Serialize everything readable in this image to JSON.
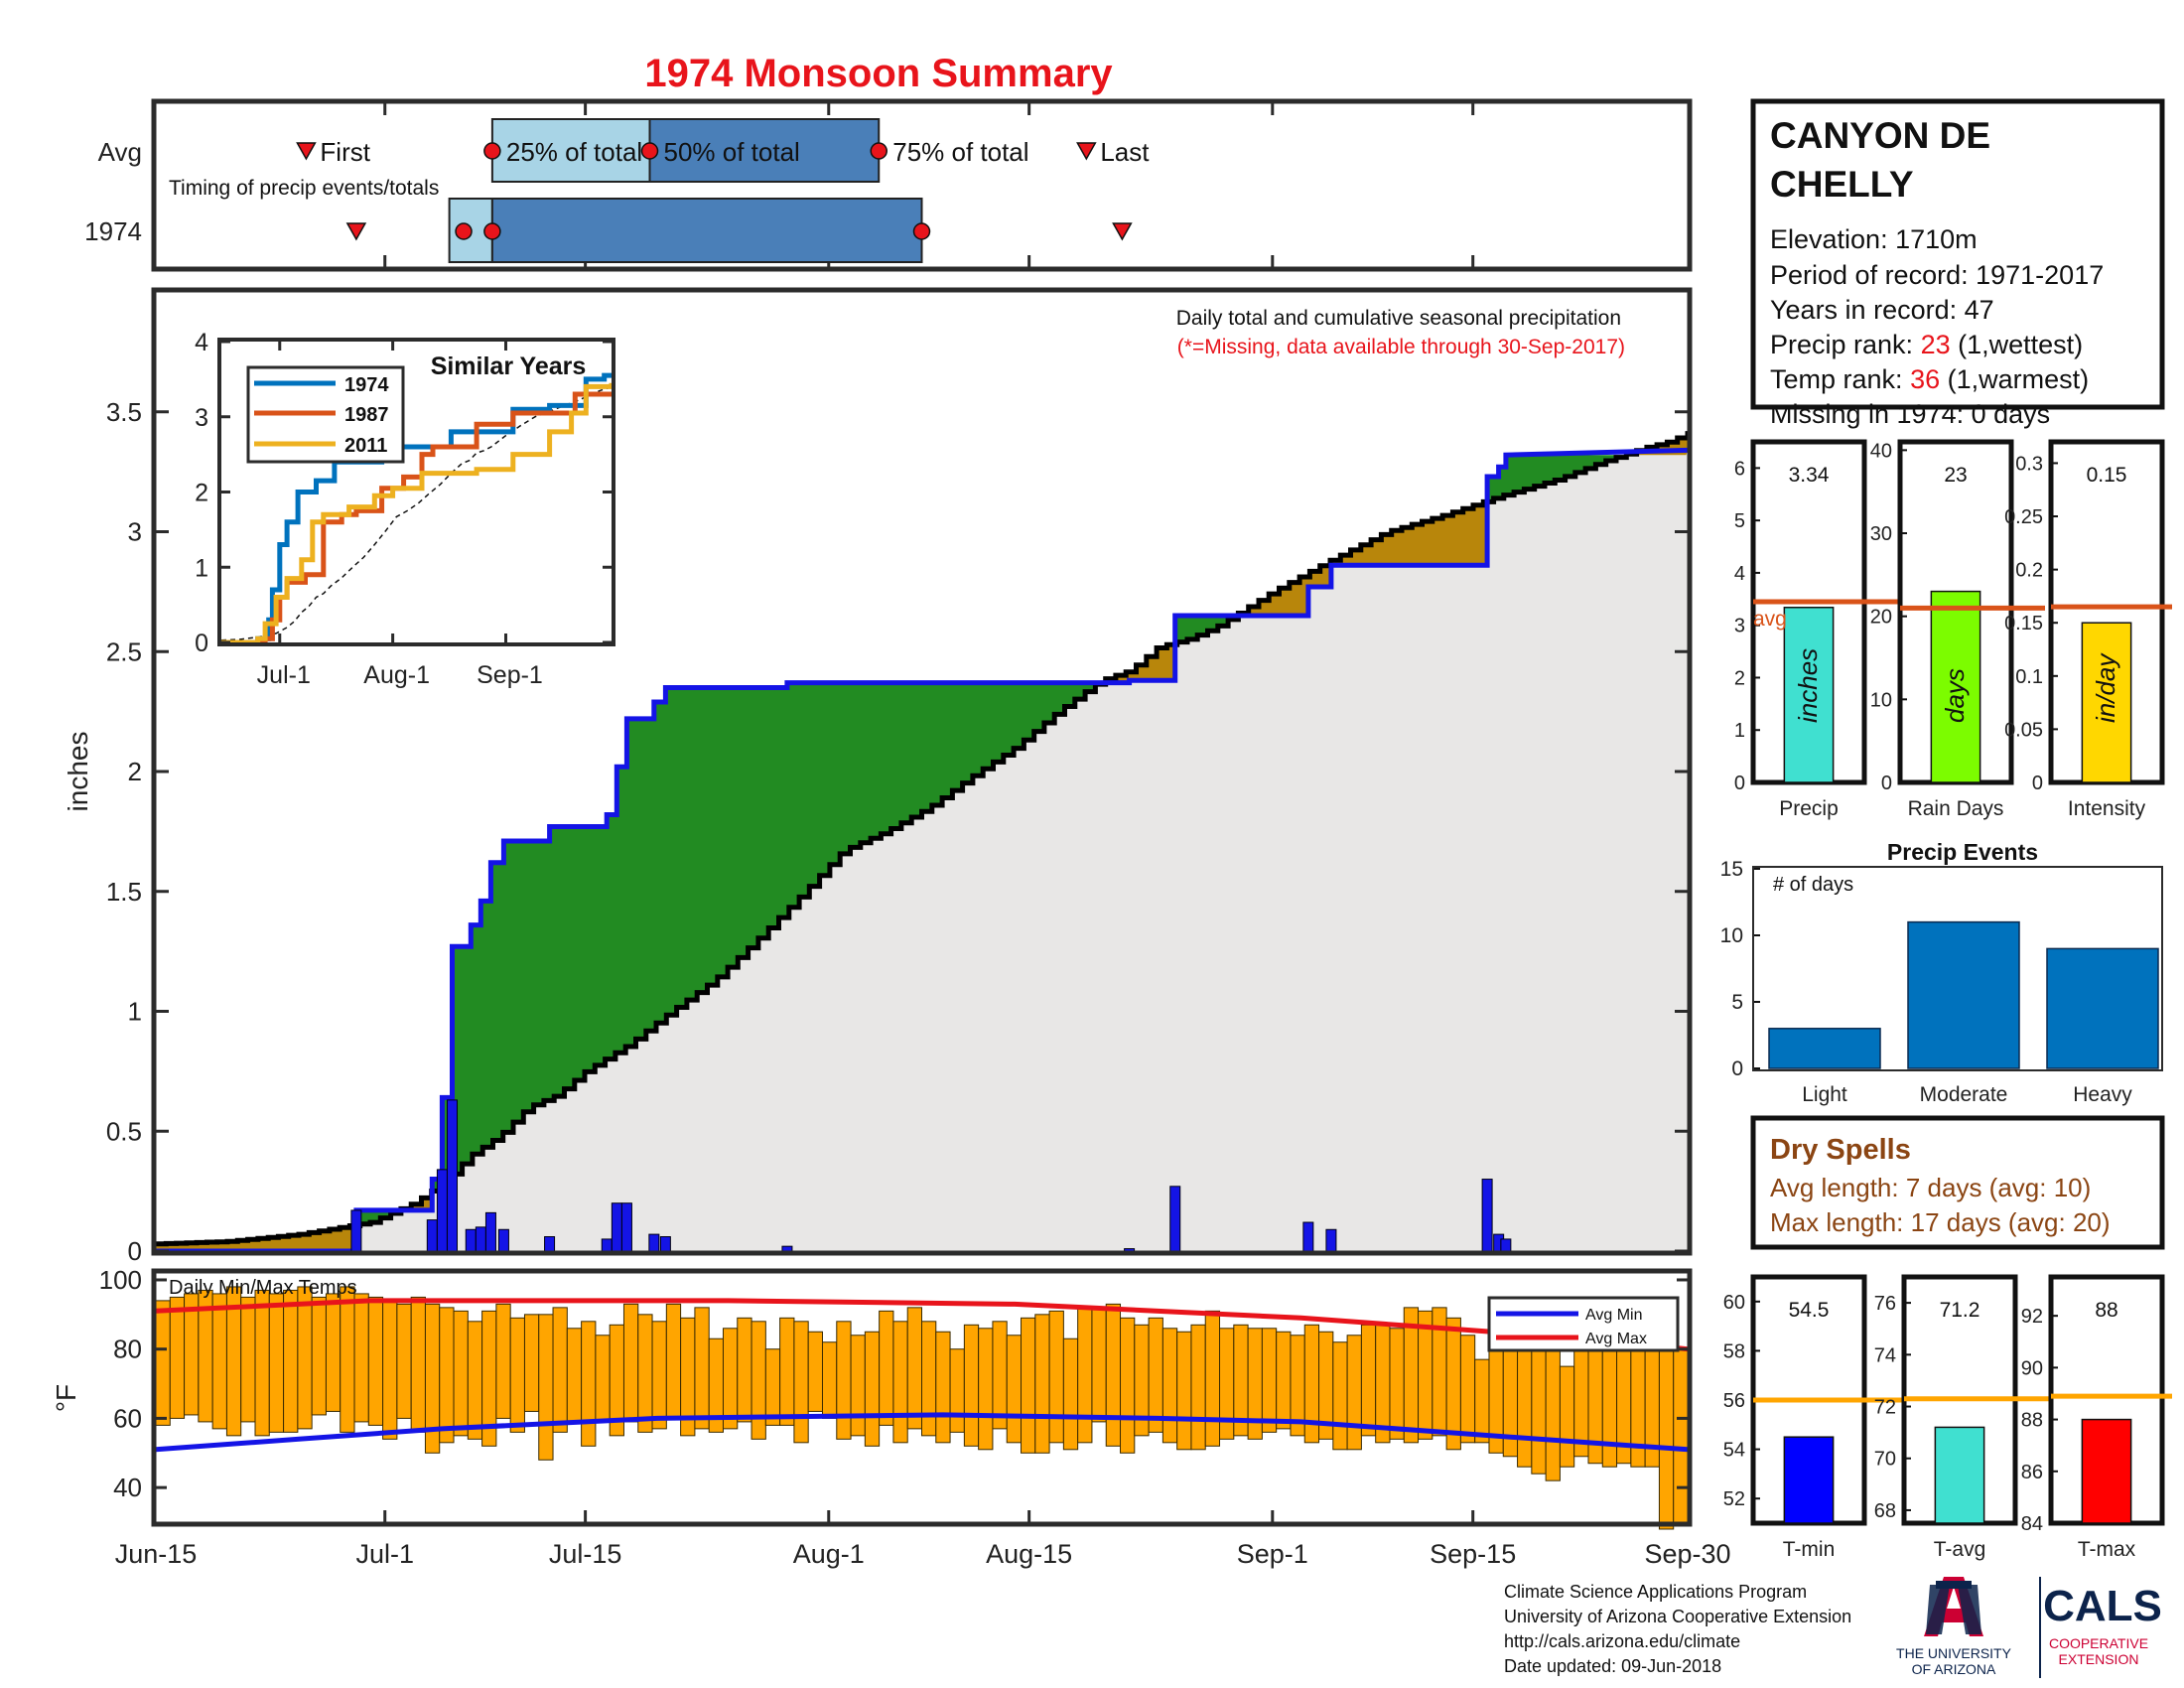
{
  "title": "1974 Monsoon Summary",
  "station": {
    "name_line1": "CANYON DE",
    "name_line2": "CHELLY",
    "elevation": "Elevation: 1710m",
    "period": "Period of record: 1971-2017",
    "years": "Years in record: 47",
    "precip_rank_label": "Precip rank: ",
    "precip_rank_value": "23",
    "precip_rank_note": " (1,wettest)",
    "temp_rank_label": "Temp rank: ",
    "temp_rank_value": "36",
    "temp_rank_note": " (1,warmest)",
    "missing": "Missing in 1974: 0 days"
  },
  "timing": {
    "row_avg_label": "Avg",
    "row_year_label": "1974",
    "subtitle": "Timing of precip events/totals",
    "first_label": "First",
    "last_label": "Last",
    "p25_label": "25% of total",
    "p50_label": "50% of total",
    "p75_label": "75% of total",
    "avg": {
      "first": 10.5,
      "p25": 23.5,
      "p50": 34.5,
      "p75": 50.5,
      "last": 65
    },
    "year": {
      "first": 14,
      "p25": 20.5,
      "p50": 23.5,
      "p75": 53.5,
      "last": 67.5
    }
  },
  "main": {
    "ylabel": "inches",
    "note": "Daily total and cumulative seasonal precipitation",
    "missing_note": "(*=Missing, data available through 30-Sep-2017)",
    "y_ticks": [
      "0",
      "0.5",
      "1",
      "1.5",
      "2",
      "2.5",
      "3",
      "3.5"
    ],
    "x_labels": [
      "Jun-15",
      "Jul-1",
      "Jul-15",
      "Aug-1",
      "Aug-15",
      "Sep-1",
      "Sep-15",
      "Sep-30"
    ]
  },
  "inset": {
    "title": "Similar Years",
    "y_ticks": [
      "0",
      "1",
      "2",
      "3",
      "4"
    ],
    "x_labels": [
      "Jul-1",
      "Aug-1",
      "Sep-1"
    ],
    "legend": [
      "1974",
      "1987",
      "2011"
    ]
  },
  "stats": {
    "precip": {
      "value_label": "3.34",
      "unit": "inches",
      "xlabel": "Precip",
      "avg_label": "avg",
      "ticks": [
        "0",
        "1",
        "2",
        "3",
        "4",
        "5",
        "6"
      ]
    },
    "raindays": {
      "value_label": "23",
      "unit": "days",
      "xlabel": "Rain Days",
      "ticks": [
        "0",
        "10",
        "20",
        "30",
        "40"
      ]
    },
    "intensity": {
      "value_label": "0.15",
      "unit": "in/day",
      "xlabel": "Intensity",
      "ticks": [
        "0",
        "0.05",
        "0.1",
        "0.15",
        "0.2",
        "0.25",
        "0.3"
      ]
    }
  },
  "events": {
    "title": "Precip Events",
    "ylabel": "# of days",
    "ticks": [
      "0",
      "5",
      "10",
      "15"
    ],
    "categories": [
      "Light",
      "Moderate",
      "Heavy"
    ]
  },
  "dry_spells": {
    "title": "Dry Spells",
    "avg_length": "Avg length: 7 days (avg: 10)",
    "max_length": "Max length: 17 days (avg: 20)"
  },
  "temps": {
    "title": "Daily Min/Max Temps",
    "ylabel": "°F",
    "y_ticks": [
      "40",
      "60",
      "80",
      "100"
    ],
    "legend_min": "Avg Min",
    "legend_max": "Avg Max"
  },
  "temp_stats": {
    "tmin": {
      "value_label": "54.5",
      "xlabel": "T-min",
      "ticks": [
        "52",
        "54",
        "56",
        "58",
        "60"
      ]
    },
    "tavg": {
      "value_label": "71.2",
      "xlabel": "T-avg",
      "ticks": [
        "68",
        "70",
        "72",
        "74",
        "76"
      ]
    },
    "tmax": {
      "value_label": "88",
      "xlabel": "T-max",
      "ticks": [
        "84",
        "86",
        "88",
        "90",
        "92"
      ]
    }
  },
  "footer": {
    "line1": "Climate Science Applications Program",
    "line2": "University of Arizona Cooperative Extension",
    "line3": "http://cals.arizona.edu/climate",
    "line4": " Date updated: 09-Jun-2018",
    "ua_line1": "THE UNIVERSITY",
    "ua_line2": "OF ARIZONA",
    "cals": "CALS",
    "cals_sub1": "COOPERATIVE",
    "cals_sub2": "EXTENSION"
  },
  "colors": {
    "accent_red": "#e8141b",
    "above_avg": "#b8860b",
    "below_avg": "#228b22",
    "current_line": "#1414e6",
    "avg_line": "#000000",
    "timing_light": "#a8d4e6",
    "timing_dark": "#4a7fb8",
    "bar_orange": "#ffa500",
    "dry_brown": "#8b4513"
  },
  "chart_data": [
    {
      "type": "line",
      "name": "main",
      "x_unit": "day of season (0 = Jun-15, 107 = Sep-30)",
      "ylim": [
        0,
        4
      ],
      "avg_cumulative": [
        [
          0,
          0.03
        ],
        [
          5,
          0.04
        ],
        [
          10,
          0.07
        ],
        [
          15,
          0.12
        ],
        [
          18,
          0.2
        ],
        [
          20,
          0.28
        ],
        [
          22,
          0.4
        ],
        [
          24,
          0.48
        ],
        [
          26,
          0.6
        ],
        [
          28,
          0.65
        ],
        [
          30,
          0.75
        ],
        [
          33,
          0.86
        ],
        [
          36,
          1.0
        ],
        [
          39,
          1.13
        ],
        [
          42,
          1.3
        ],
        [
          45,
          1.48
        ],
        [
          48,
          1.67
        ],
        [
          51,
          1.75
        ],
        [
          54,
          1.85
        ],
        [
          57,
          1.98
        ],
        [
          60,
          2.1
        ],
        [
          63,
          2.25
        ],
        [
          66,
          2.38
        ],
        [
          68,
          2.42
        ],
        [
          70,
          2.52
        ],
        [
          72,
          2.55
        ],
        [
          74,
          2.6
        ],
        [
          78,
          2.75
        ],
        [
          82,
          2.88
        ],
        [
          86,
          3.0
        ],
        [
          90,
          3.07
        ],
        [
          94,
          3.15
        ],
        [
          98,
          3.22
        ],
        [
          101,
          3.29
        ],
        [
          104,
          3.35
        ],
        [
          106,
          3.38
        ],
        [
          107,
          3.42
        ]
      ],
      "year_cumulative": [
        [
          0,
          0
        ],
        [
          14,
          0
        ],
        [
          14,
          0.17
        ],
        [
          19.3,
          0.17
        ],
        [
          19.3,
          0.3
        ],
        [
          20,
          0.3
        ],
        [
          20,
          0.64
        ],
        [
          20.7,
          0.64
        ],
        [
          20.7,
          1.27
        ],
        [
          22,
          1.27
        ],
        [
          22,
          1.36
        ],
        [
          22.7,
          1.36
        ],
        [
          22.7,
          1.46
        ],
        [
          23.4,
          1.46
        ],
        [
          23.4,
          1.62
        ],
        [
          24.3,
          1.62
        ],
        [
          24.3,
          1.71
        ],
        [
          27.5,
          1.71
        ],
        [
          27.5,
          1.77
        ],
        [
          31.5,
          1.77
        ],
        [
          31.5,
          1.82
        ],
        [
          32.2,
          1.82
        ],
        [
          32.2,
          2.02
        ],
        [
          32.9,
          2.02
        ],
        [
          32.9,
          2.22
        ],
        [
          34.8,
          2.22
        ],
        [
          34.8,
          2.29
        ],
        [
          35.6,
          2.29
        ],
        [
          35.6,
          2.35
        ],
        [
          44.1,
          2.35
        ],
        [
          44.1,
          2.37
        ],
        [
          68,
          2.37
        ],
        [
          68,
          2.38
        ],
        [
          71.2,
          2.38
        ],
        [
          71.2,
          2.65
        ],
        [
          80.5,
          2.65
        ],
        [
          80.5,
          2.77
        ],
        [
          82.1,
          2.77
        ],
        [
          82.1,
          2.86
        ],
        [
          93,
          2.86
        ],
        [
          93,
          3.23
        ],
        [
          93.8,
          3.23
        ],
        [
          93.8,
          3.27
        ],
        [
          94.3,
          3.27
        ],
        [
          94.3,
          3.32
        ],
        [
          107,
          3.34
        ]
      ],
      "daily_precip": [
        [
          14,
          0.17
        ],
        [
          19.3,
          0.13
        ],
        [
          20,
          0.34
        ],
        [
          20.7,
          0.63
        ],
        [
          22,
          0.09
        ],
        [
          22.7,
          0.1
        ],
        [
          23.4,
          0.16
        ],
        [
          24.3,
          0.09
        ],
        [
          27.5,
          0.06
        ],
        [
          31.5,
          0.05
        ],
        [
          32.2,
          0.2
        ],
        [
          32.9,
          0.2
        ],
        [
          34.8,
          0.07
        ],
        [
          35.6,
          0.06
        ],
        [
          44.1,
          0.02
        ],
        [
          68,
          0.01
        ],
        [
          71.2,
          0.27
        ],
        [
          80.5,
          0.12
        ],
        [
          82.1,
          0.09
        ],
        [
          93,
          0.3
        ],
        [
          93.8,
          0.07
        ],
        [
          94.3,
          0.05
        ]
      ]
    },
    {
      "type": "line",
      "name": "similar_years",
      "x_unit": "day of season (0 = Jun-15, 107 = Sep-30)",
      "ylim": [
        0,
        4
      ],
      "series": [
        {
          "name": "1974",
          "points": [
            [
              0,
              0
            ],
            [
              10,
              0.05
            ],
            [
              13,
              0.3
            ],
            [
              14,
              0.7
            ],
            [
              16,
              1.3
            ],
            [
              18,
              1.6
            ],
            [
              21,
              2.0
            ],
            [
              26,
              2.15
            ],
            [
              31,
              2.4
            ],
            [
              37,
              2.4
            ],
            [
              44,
              2.6
            ],
            [
              55,
              2.6
            ],
            [
              63,
              2.8
            ],
            [
              70,
              2.8
            ],
            [
              80,
              3.1
            ],
            [
              90,
              3.15
            ],
            [
              100,
              3.5
            ],
            [
              105,
              3.55
            ],
            [
              107,
              3.55
            ]
          ]
        },
        {
          "name": "1987",
          "points": [
            [
              0,
              0
            ],
            [
              12,
              0.05
            ],
            [
              14,
              0.3
            ],
            [
              16,
              0.6
            ],
            [
              18,
              0.8
            ],
            [
              23,
              0.9
            ],
            [
              28,
              1.6
            ],
            [
              33,
              1.7
            ],
            [
              37,
              1.75
            ],
            [
              44,
              2.05
            ],
            [
              50,
              2.2
            ],
            [
              55,
              2.5
            ],
            [
              58,
              2.6
            ],
            [
              64,
              2.6
            ],
            [
              70,
              2.9
            ],
            [
              80,
              3.05
            ],
            [
              90,
              3.05
            ],
            [
              97,
              3.3
            ],
            [
              107,
              3.3
            ]
          ]
        },
        {
          "name": "2011",
          "points": [
            [
              0,
              0
            ],
            [
              10,
              0.05
            ],
            [
              12,
              0.25
            ],
            [
              15,
              0.6
            ],
            [
              18,
              0.85
            ],
            [
              22,
              1.1
            ],
            [
              25,
              1.6
            ],
            [
              28,
              1.7
            ],
            [
              35,
              1.8
            ],
            [
              42,
              1.95
            ],
            [
              47,
              2.05
            ],
            [
              55,
              2.25
            ],
            [
              62,
              2.25
            ],
            [
              70,
              2.3
            ],
            [
              80,
              2.5
            ],
            [
              90,
              2.8
            ],
            [
              96,
              3.05
            ],
            [
              100,
              3.4
            ],
            [
              107,
              3.45
            ]
          ]
        }
      ]
    },
    {
      "type": "bar",
      "name": "season_stats",
      "categories": [
        "Precip",
        "Rain Days",
        "Intensity"
      ],
      "values": [
        3.34,
        23,
        0.15
      ],
      "averages": [
        3.45,
        21,
        0.165
      ],
      "ylims": [
        [
          0,
          6.5
        ],
        [
          0,
          41
        ],
        [
          0,
          0.32
        ]
      ]
    },
    {
      "type": "bar",
      "name": "precip_events",
      "categories": [
        "Light",
        "Moderate",
        "Heavy"
      ],
      "values": [
        3,
        11,
        9
      ],
      "ylim": [
        0,
        15
      ]
    },
    {
      "type": "line",
      "name": "daily_temps",
      "x_unit": "day of season (0 = Jun-15, 107 = Sep-30)",
      "ylim": [
        30,
        102
      ],
      "tmax": [
        94,
        95,
        96,
        97,
        96,
        98,
        95,
        97,
        96,
        97,
        98,
        95,
        96,
        98,
        96,
        95,
        94,
        93,
        95,
        93,
        92,
        91,
        88,
        91,
        93,
        89,
        90,
        90,
        92,
        86,
        88,
        84,
        87,
        93,
        90,
        88,
        93,
        89,
        92,
        83,
        86,
        89,
        88,
        80,
        89,
        88,
        85,
        82,
        88,
        84,
        85,
        91,
        88,
        92,
        88,
        85,
        80,
        87,
        86,
        88,
        84,
        89,
        90,
        91,
        83,
        92,
        92,
        93,
        89,
        87,
        89,
        86,
        85,
        87,
        91,
        86,
        87,
        86,
        86,
        85,
        84,
        87,
        85,
        82,
        84,
        87,
        87,
        86,
        92,
        91,
        92,
        89,
        84,
        77,
        86,
        84,
        90,
        84,
        86,
        75,
        86,
        90,
        89,
        94,
        82,
        90,
        80,
        80
      ],
      "tmin": [
        58,
        60,
        61,
        59,
        57,
        55,
        59,
        55,
        56,
        56,
        57,
        61,
        62,
        56,
        59,
        58,
        54,
        60,
        56,
        50,
        53,
        55,
        54,
        52,
        60,
        56,
        62,
        48,
        56,
        59,
        52,
        59,
        55,
        59,
        56,
        57,
        60,
        55,
        57,
        56,
        57,
        59,
        54,
        58,
        58,
        53,
        62,
        60,
        54,
        55,
        52,
        58,
        53,
        57,
        55,
        53,
        56,
        52,
        51,
        57,
        53,
        50,
        50,
        53,
        51,
        53,
        59,
        52,
        50,
        55,
        56,
        53,
        51,
        51,
        52,
        54,
        55,
        54,
        56,
        57,
        55,
        53,
        54,
        51,
        51,
        55,
        53,
        54,
        53,
        54,
        55,
        51,
        53,
        53,
        50,
        49,
        46,
        44,
        42,
        46,
        49,
        47,
        46,
        47,
        46,
        46,
        28,
        30
      ],
      "avg_min": [
        [
          0,
          51
        ],
        [
          10,
          54
        ],
        [
          20,
          57
        ],
        [
          35,
          60
        ],
        [
          55,
          61
        ],
        [
          70,
          60
        ],
        [
          80,
          59
        ],
        [
          90,
          56
        ],
        [
          100,
          53
        ],
        [
          107,
          51
        ]
      ],
      "avg_max": [
        [
          0,
          91
        ],
        [
          15,
          94
        ],
        [
          40,
          94
        ],
        [
          60,
          93
        ],
        [
          80,
          89
        ],
        [
          90,
          86
        ],
        [
          100,
          83
        ],
        [
          107,
          80
        ]
      ]
    },
    {
      "type": "bar",
      "name": "temp_stats",
      "categories": [
        "T-min",
        "T-avg",
        "T-max"
      ],
      "values": [
        54.5,
        71.2,
        88
      ],
      "averages": [
        56,
        72.3,
        88.9
      ],
      "ylims": [
        [
          51,
          61
        ],
        [
          67.5,
          77
        ],
        [
          84,
          93.5
        ]
      ]
    }
  ]
}
